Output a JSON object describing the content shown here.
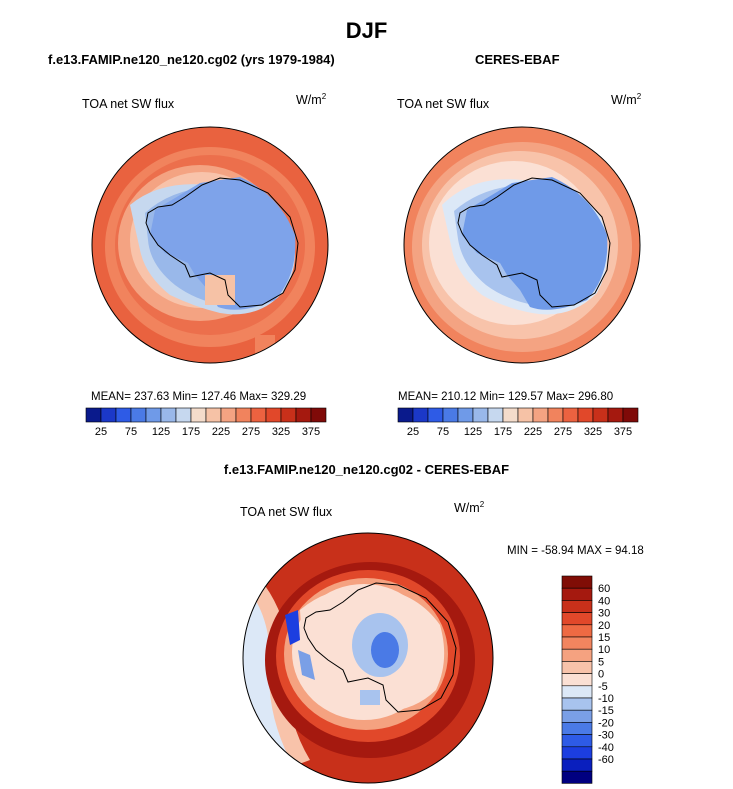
{
  "page": {
    "title": "DJF"
  },
  "panels": [
    {
      "title": "f.e13.FAMIP.ne120_ne120.cg02 (yrs 1979-1984)",
      "field_label": "TOA net SW flux",
      "units": "W/m",
      "units_exp": "2",
      "stats": "MEAN= 237.63   Min= 127.46   Max= 329.29"
    },
    {
      "title": "CERES-EBAF",
      "field_label": "TOA net SW flux",
      "units": "W/m",
      "units_exp": "2",
      "stats": "MEAN= 210.12   Min= 129.57   Max= 296.80"
    },
    {
      "title": "f.e13.FAMIP.ne120_ne120.cg02 - CERES-EBAF",
      "field_label": "TOA net SW flux",
      "units": "W/m",
      "units_exp": "2",
      "stats": "MIN = -58.94 MAX =  94.18"
    }
  ],
  "colorbar_abs": {
    "colors": [
      "#0a1a8c",
      "#1b38c8",
      "#2e5be6",
      "#4a7ae6",
      "#6f9ae8",
      "#99b8ea",
      "#c6d8ef",
      "#f4dccb",
      "#f6c2a6",
      "#f4a382",
      "#f1835d",
      "#ec6240",
      "#e1482a",
      "#c8301a",
      "#a5190f",
      "#7f0a08"
    ],
    "labels": [
      "25",
      "75",
      "125",
      "175",
      "225",
      "275",
      "325",
      "375"
    ]
  },
  "colorbar_diff": {
    "colors": [
      "#000080",
      "#0a1fbe",
      "#1c3ee0",
      "#2e5be6",
      "#4a7ae6",
      "#7a9fe6",
      "#a8c3ee",
      "#dce8f7",
      "#fbe0d4",
      "#f8c3aa",
      "#f5a280",
      "#f2855f",
      "#ee6a43",
      "#e1482a",
      "#c8301a",
      "#a5190f",
      "#800d06"
    ],
    "labels": [
      "60",
      "40",
      "30",
      "20",
      "15",
      "10",
      "5",
      "0",
      "-5",
      "-10",
      "-15",
      "-20",
      "-30",
      "-40",
      "-60"
    ]
  }
}
